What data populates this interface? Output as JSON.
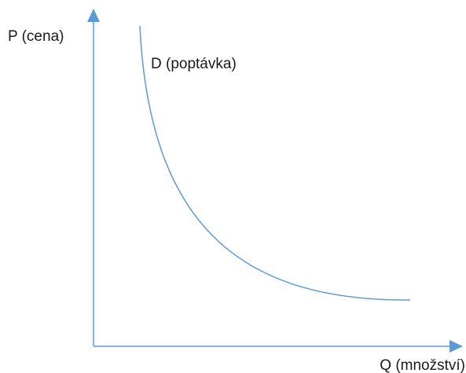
{
  "y_axis": {
    "label": "P (cena)"
  },
  "x_axis": {
    "label": "Q (množství)"
  },
  "curve": {
    "label": "D (poptávka)"
  },
  "colors": {
    "axis": "#5b9bd5",
    "curve": "#5b9bd5",
    "text": "#1a1a1a",
    "background": "#ffffff"
  }
}
